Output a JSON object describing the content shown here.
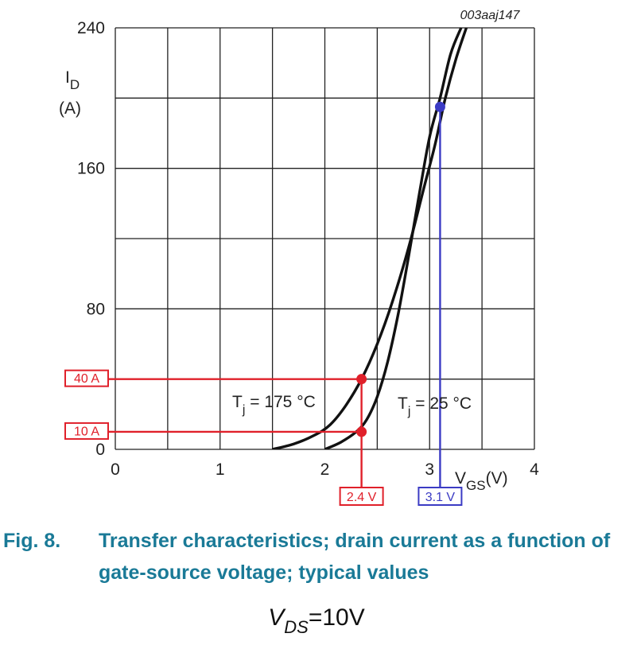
{
  "reference_id": "003aaj147",
  "caption": {
    "number": "Fig. 8.",
    "text": "Transfer characteristics; drain current as a function of gate-source voltage; typical values"
  },
  "formula": {
    "symbol": "V",
    "subscript": "DS",
    "equals": "=",
    "value": "10V"
  },
  "colors": {
    "grid": "#222222",
    "curve": "#111111",
    "red": "#e0202a",
    "blue": "#3b3bc4",
    "caption": "#1a7a97"
  },
  "chart_data": {
    "type": "line",
    "title": "",
    "xlabel": {
      "main": "V",
      "sub": "GS",
      "unit": "(V)"
    },
    "ylabel": {
      "main": "I",
      "sub": "D",
      "unit": "(A)"
    },
    "xlim": [
      0,
      4
    ],
    "ylim": [
      0,
      240
    ],
    "grid": true,
    "x_grid_step": 0.5,
    "y_grid_step": 40,
    "xticks": [
      "0",
      "1",
      "2",
      "3",
      "4"
    ],
    "yticks": [
      "0",
      "80",
      "160",
      "240"
    ],
    "series": [
      {
        "name": "Tj = 175 °C",
        "label": {
          "main": "T",
          "sub": "j",
          "rest": " = 175 °C"
        },
        "x": [
          1.5,
          1.7,
          1.9,
          2.05,
          2.2,
          2.35,
          2.5,
          2.65,
          2.8,
          2.95,
          3.05,
          3.15,
          3.25,
          3.35
        ],
        "y": [
          0,
          3,
          8,
          14,
          25,
          40,
          60,
          85,
          115,
          150,
          173,
          200,
          222,
          240
        ]
      },
      {
        "name": "Tj = 25 °C",
        "label": {
          "main": "T",
          "sub": "j",
          "rest": " = 25 °C"
        },
        "x": [
          2.0,
          2.15,
          2.3,
          2.4,
          2.5,
          2.6,
          2.7,
          2.8,
          2.9,
          3.0,
          3.1,
          3.2,
          3.3
        ],
        "y": [
          0,
          4,
          10,
          17,
          30,
          50,
          77,
          110,
          145,
          178,
          200,
          225,
          240
        ]
      }
    ],
    "annotations": [
      {
        "x": 2.35,
        "y": 40,
        "color": "red",
        "x_label": "",
        "y_label": "40 A"
      },
      {
        "x": 2.35,
        "y": 10,
        "color": "red",
        "x_label": "2.4 V",
        "y_label": "10 A"
      },
      {
        "x": 3.1,
        "y": 195,
        "color": "blue",
        "x_label": "3.1 V",
        "y_label": ""
      }
    ]
  }
}
